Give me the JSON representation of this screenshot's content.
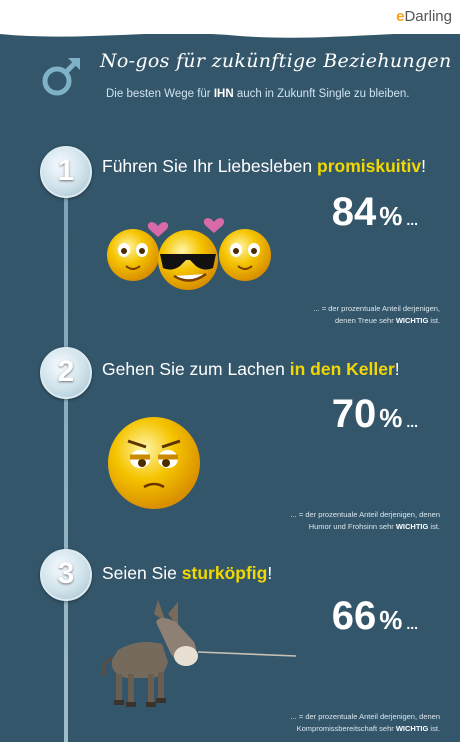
{
  "brand": {
    "logo_text": "eDarling"
  },
  "header": {
    "title": "No-gos für zukünftige Beziehungen",
    "subtitle_pre": "Die besten Wege für ",
    "subtitle_bold": "IHN",
    "subtitle_post": " auch in Zukunft Single zu bleiben."
  },
  "items": [
    {
      "number": "1",
      "heading_pre": "Führen Sie Ihr Liebesleben ",
      "heading_bold": "promiskuitiv",
      "heading_post": "!",
      "percent": "84",
      "percent_sign": "%",
      "percent_dots": "...",
      "note_line1": "... = der prozentuale Anteil derjenigen,",
      "note_line2_pre": "denen Treue sehr ",
      "note_bold": "WICHTIG",
      "note_line2_post": " ist."
    },
    {
      "number": "2",
      "heading_pre": "Gehen Sie zum Lachen ",
      "heading_bold": "in den Keller",
      "heading_post": "!",
      "percent": "70",
      "percent_sign": "%",
      "percent_dots": "...",
      "note_line1": "... = der prozentuale Anteil derjenigen, denen",
      "note_line2_pre": "Humor und Frohsinn sehr ",
      "note_bold": "WICHTIG",
      "note_line2_post": " ist."
    },
    {
      "number": "3",
      "heading_pre": "Seien Sie ",
      "heading_bold": "sturköpfig",
      "heading_post": "!",
      "percent": "66",
      "percent_sign": "%",
      "percent_dots": "...",
      "note_line1": "... = der prozentuale Anteil derjenigen, denen",
      "note_line2_pre": "Kompromissbereitschaft sehr ",
      "note_bold": "WICHTIG",
      "note_line2_post": " ist."
    }
  ],
  "icons": [
    "male-symbol-icon",
    "heart-icon",
    "smiley-icon",
    "sunglasses-smiley-icon",
    "grumpy-smiley-icon",
    "donkey-icon"
  ],
  "colors": {
    "background": "#34566a",
    "accent_yellow": "#f2d800",
    "smiley_yellow": "#f5c400"
  }
}
